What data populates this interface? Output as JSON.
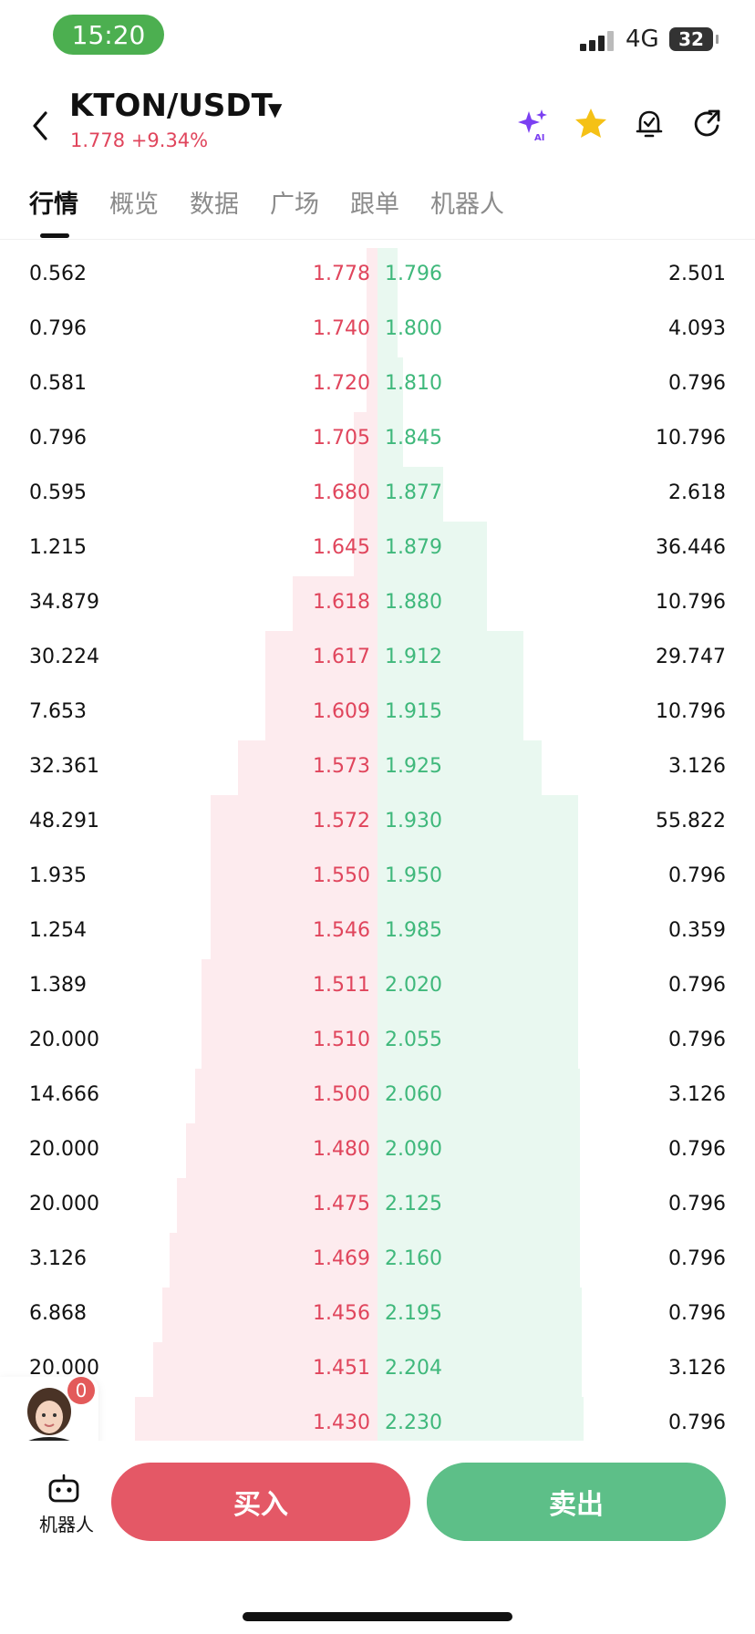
{
  "status_bar": {
    "time": "15:20",
    "network": "4G",
    "battery": "32"
  },
  "header": {
    "pair": "KTON/USDT",
    "price": "1.778",
    "change": "+9.34%",
    "colors": {
      "up": "#e0455c",
      "ai_purple": "#7b3ff2",
      "star": "#f5c116"
    }
  },
  "tabs": [
    "行情",
    "概览",
    "数据",
    "广场",
    "跟单",
    "机器人"
  ],
  "order_book": {
    "rows": [
      {
        "bid_qty": "0.562",
        "bid_price": "1.778",
        "ask_price": "1.796",
        "ask_qty": "2.501"
      },
      {
        "bid_qty": "0.796",
        "bid_price": "1.740",
        "ask_price": "1.800",
        "ask_qty": "4.093"
      },
      {
        "bid_qty": "0.581",
        "bid_price": "1.720",
        "ask_price": "1.810",
        "ask_qty": "0.796"
      },
      {
        "bid_qty": "0.796",
        "bid_price": "1.705",
        "ask_price": "1.845",
        "ask_qty": "10.796"
      },
      {
        "bid_qty": "0.595",
        "bid_price": "1.680",
        "ask_price": "1.877",
        "ask_qty": "2.618"
      },
      {
        "bid_qty": "1.215",
        "bid_price": "1.645",
        "ask_price": "1.879",
        "ask_qty": "36.446"
      },
      {
        "bid_qty": "34.879",
        "bid_price": "1.618",
        "ask_price": "1.880",
        "ask_qty": "10.796"
      },
      {
        "bid_qty": "30.224",
        "bid_price": "1.617",
        "ask_price": "1.912",
        "ask_qty": "29.747"
      },
      {
        "bid_qty": "7.653",
        "bid_price": "1.609",
        "ask_price": "1.915",
        "ask_qty": "10.796"
      },
      {
        "bid_qty": "32.361",
        "bid_price": "1.573",
        "ask_price": "1.925",
        "ask_qty": "3.126"
      },
      {
        "bid_qty": "48.291",
        "bid_price": "1.572",
        "ask_price": "1.930",
        "ask_qty": "55.822"
      },
      {
        "bid_qty": "1.935",
        "bid_price": "1.550",
        "ask_price": "1.950",
        "ask_qty": "0.796"
      },
      {
        "bid_qty": "1.254",
        "bid_price": "1.546",
        "ask_price": "1.985",
        "ask_qty": "0.359"
      },
      {
        "bid_qty": "1.389",
        "bid_price": "1.511",
        "ask_price": "2.020",
        "ask_qty": "0.796"
      },
      {
        "bid_qty": "20.000",
        "bid_price": "1.510",
        "ask_price": "2.055",
        "ask_qty": "0.796"
      },
      {
        "bid_qty": "14.666",
        "bid_price": "1.500",
        "ask_price": "2.060",
        "ask_qty": "3.126"
      },
      {
        "bid_qty": "20.000",
        "bid_price": "1.480",
        "ask_price": "2.090",
        "ask_qty": "0.796"
      },
      {
        "bid_qty": "20.000",
        "bid_price": "1.475",
        "ask_price": "2.125",
        "ask_qty": "0.796"
      },
      {
        "bid_qty": "3.126",
        "bid_price": "1.469",
        "ask_price": "2.160",
        "ask_qty": "0.796"
      },
      {
        "bid_qty": "6.868",
        "bid_price": "1.456",
        "ask_price": "2.195",
        "ask_qty": "0.796"
      },
      {
        "bid_qty": "20.000",
        "bid_price": "1.451",
        "ask_price": "2.204",
        "ask_qty": "3.126"
      },
      {
        "bid_qty": "",
        "bid_price": "1.430",
        "ask_price": "2.230",
        "ask_qty": "0.796"
      }
    ],
    "colors": {
      "bid": "#e0455c",
      "ask": "#3fb87b",
      "bid_bg": "#fdebee",
      "ask_bg": "#e9f8f0"
    }
  },
  "assistant": {
    "badge": "0"
  },
  "bottom_bar": {
    "robot_label": "机器人",
    "buy_label": "买入",
    "sell_label": "卖出"
  }
}
